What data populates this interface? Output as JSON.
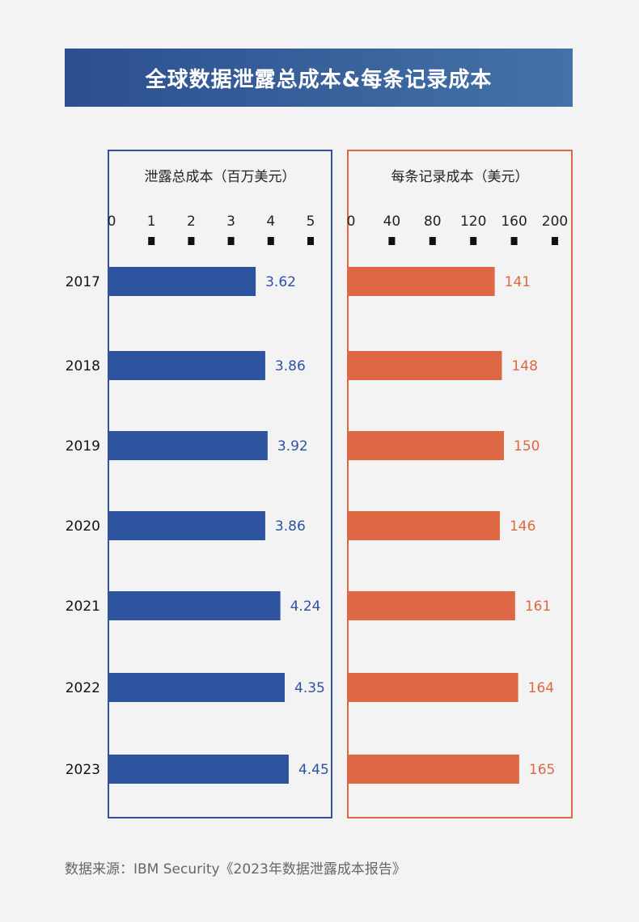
{
  "title": "全球数据泄露总成本&每条记录成本",
  "source": "数据来源：IBM Security《2023年数据泄露成本报告》",
  "colors": {
    "total": "#2e539f",
    "per_record": "#dd6843",
    "title_bg": "#3a5f9b"
  },
  "chart_data": [
    {
      "type": "bar",
      "orientation": "horizontal",
      "title": "泄露总成本（百万美元）",
      "categories": [
        "2017",
        "2018",
        "2019",
        "2020",
        "2021",
        "2022",
        "2023"
      ],
      "values": [
        3.62,
        3.86,
        3.92,
        3.86,
        4.24,
        4.35,
        4.45
      ],
      "data_labels": [
        "3.62",
        "3.86",
        "3.92",
        "3.86",
        "4.24",
        "4.35",
        "4.45"
      ],
      "xlim": [
        0,
        5
      ],
      "ticks": [
        0,
        1,
        2,
        3,
        4,
        5
      ],
      "tick_labels": [
        "0",
        "1",
        "2",
        "3",
        "4",
        "5"
      ]
    },
    {
      "type": "bar",
      "orientation": "horizontal",
      "title": "每条记录成本（美元）",
      "categories": [
        "2017",
        "2018",
        "2019",
        "2020",
        "2021",
        "2022",
        "2023"
      ],
      "values": [
        141,
        148,
        150,
        146,
        161,
        164,
        165
      ],
      "data_labels": [
        "141",
        "148",
        "150",
        "146",
        "161",
        "164",
        "165"
      ],
      "xlim": [
        0,
        200
      ],
      "ticks": [
        0,
        40,
        80,
        120,
        160,
        200
      ],
      "tick_labels": [
        "0",
        "40",
        "80",
        "120",
        "160",
        "200"
      ]
    }
  ]
}
